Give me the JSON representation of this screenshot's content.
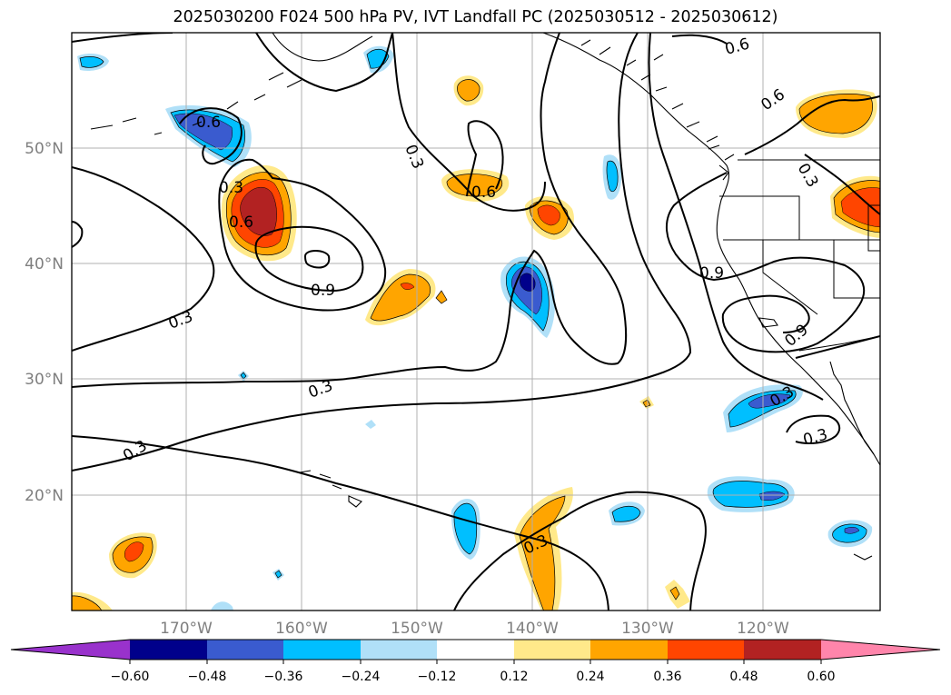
{
  "title": "2025030200 F024 500 hPa PV, IVT Landfall PC (2025030512 - 2025030612)",
  "map": {
    "lon_range": [
      -180,
      -110
    ],
    "lat_range": [
      10,
      60
    ],
    "lat_labels": [
      "50°N",
      "40°N",
      "30°N",
      "20°N"
    ],
    "lon_labels": [
      "170°W",
      "160°W",
      "150°W",
      "140°W",
      "130°W",
      "120°W"
    ],
    "contour_labels": [
      "0.6",
      "0.3",
      "0.6",
      "0.9",
      "0.3",
      "0.3",
      "0.3",
      "0.6",
      "0.3",
      "0.6",
      "0.6",
      "0.3",
      "0.9",
      "0.9",
      "0.3",
      "0.3",
      "0.3"
    ]
  },
  "colorbar": {
    "ticks": [
      "−0.60",
      "−0.48",
      "−0.36",
      "−0.24",
      "−0.12",
      "0.12",
      "0.24",
      "0.36",
      "0.48",
      "0.60"
    ],
    "colors": {
      "under": "#9932cc",
      "n060": "#00008b",
      "n048": "#3a5bcf",
      "n036": "#00bfff",
      "n024": "#b0e0f8",
      "zero": "#ffffff",
      "p012": "#ffe98a",
      "p024": "#ffa500",
      "p036": "#ff4500",
      "p048": "#b22222",
      "over": "#ff85ab"
    }
  }
}
